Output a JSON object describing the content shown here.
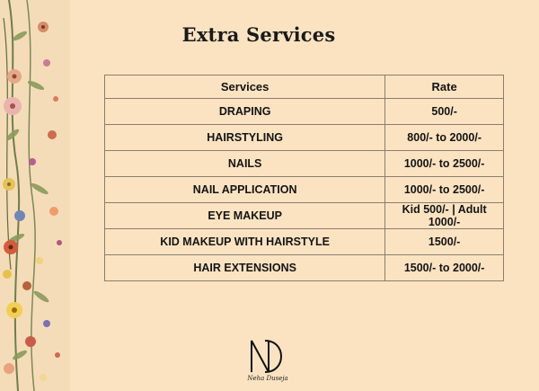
{
  "title": "Extra Services",
  "table": {
    "headers": [
      "Services",
      "Rate"
    ],
    "rows": [
      [
        "DRAPING",
        "500/-"
      ],
      [
        "HAIRSTYLING",
        "800/- to 2000/-"
      ],
      [
        "NAILS",
        "1000/- to 2500/-"
      ],
      [
        "NAIL APPLICATION",
        "1000/- to 2500/-"
      ],
      [
        "EYE MAKEUP",
        "Kid 500/- | Adult 1000/-"
      ],
      [
        "KID MAKEUP WITH HAIRSTYLE",
        "1500/-"
      ],
      [
        "HAIR EXTENSIONS",
        "1500/- to 2000/-"
      ]
    ]
  },
  "brand": {
    "monogram": "ND",
    "signature": "Neha Duseja"
  },
  "colors": {
    "background": "#fbe3c2",
    "text": "#141414",
    "border": "#8a7d6d"
  },
  "decor": "floral-border-icon"
}
